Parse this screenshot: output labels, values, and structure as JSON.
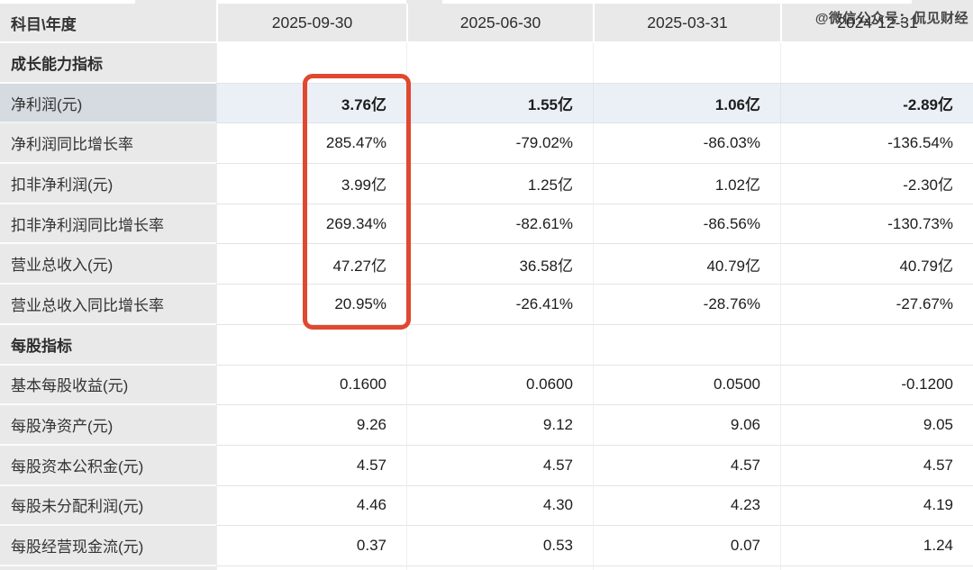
{
  "watermark": "@微信公众号：侃见财经",
  "colors": {
    "annotation_red": "#e0482f",
    "header_bg": "#e9e9e9",
    "label_column_bg": "#e9e9e9",
    "highlight_row_label_bg": "#d5dbe0",
    "highlight_row_value_bg": "#eaf0f5"
  },
  "annotation": {
    "type": "red-rounded-box",
    "highlighted_column": "2025-09-30",
    "rows_spanned_from": "净利润(元)",
    "rows_spanned_to": "营业总收入同比增长率"
  },
  "table": {
    "corner": "科目\\年度",
    "columns": [
      "2025-09-30",
      "2025-06-30",
      "2025-03-31",
      "2024-12-31"
    ],
    "rows": [
      {
        "type": "section",
        "label": "成长能力指标",
        "values": [
          "",
          "",
          "",
          ""
        ]
      },
      {
        "type": "highlight",
        "label": "净利润(元)",
        "values": [
          "3.76亿",
          "1.55亿",
          "1.06亿",
          "-2.89亿"
        ]
      },
      {
        "type": "normal",
        "label": "净利润同比增长率",
        "values": [
          "285.47%",
          "-79.02%",
          "-86.03%",
          "-136.54%"
        ]
      },
      {
        "type": "normal",
        "label": "扣非净利润(元)",
        "values": [
          "3.99亿",
          "1.25亿",
          "1.02亿",
          "-2.30亿"
        ]
      },
      {
        "type": "normal",
        "label": "扣非净利润同比增长率",
        "values": [
          "269.34%",
          "-82.61%",
          "-86.56%",
          "-130.73%"
        ]
      },
      {
        "type": "normal",
        "label": "营业总收入(元)",
        "values": [
          "47.27亿",
          "36.58亿",
          "40.79亿",
          "40.79亿"
        ]
      },
      {
        "type": "normal",
        "label": "营业总收入同比增长率",
        "values": [
          "20.95%",
          "-26.41%",
          "-28.76%",
          "-27.67%"
        ]
      },
      {
        "type": "section",
        "label": "每股指标",
        "values": [
          "",
          "",
          "",
          ""
        ]
      },
      {
        "type": "normal",
        "label": "基本每股收益(元)",
        "values": [
          "0.1600",
          "0.0600",
          "0.0500",
          "-0.1200"
        ]
      },
      {
        "type": "normal",
        "label": "每股净资产(元)",
        "values": [
          "9.26",
          "9.12",
          "9.06",
          "9.05"
        ]
      },
      {
        "type": "normal",
        "label": "每股资本公积金(元)",
        "values": [
          "4.57",
          "4.57",
          "4.57",
          "4.57"
        ]
      },
      {
        "type": "normal",
        "label": "每股未分配利润(元)",
        "values": [
          "4.46",
          "4.30",
          "4.23",
          "4.19"
        ]
      },
      {
        "type": "normal",
        "label": "每股经营现金流(元)",
        "values": [
          "0.37",
          "0.53",
          "0.07",
          "1.24"
        ]
      }
    ]
  }
}
